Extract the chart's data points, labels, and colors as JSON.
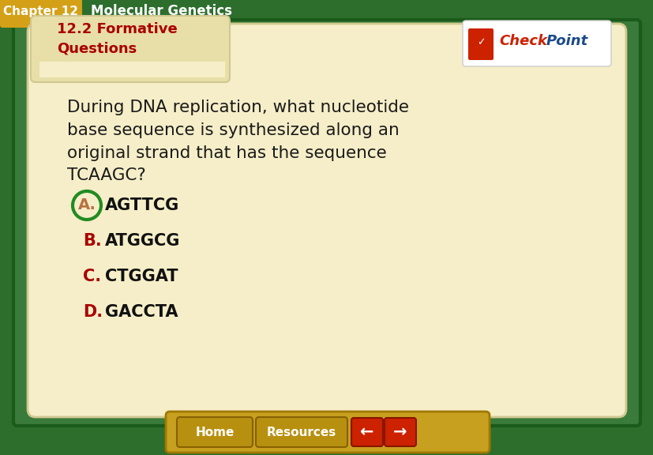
{
  "header_bg": "#2d6e2d",
  "header_chapter_bg": "#d4a017",
  "header_chapter_text": "Chapter 12",
  "header_title_text": "Molecular Genetics",
  "header_text_color": "#ffffff",
  "tab_bg": "#e8dfa8",
  "tab_title": "12.2 Formative\nQuestions",
  "tab_title_color": "#aa0000",
  "main_bg": "#f5eec8",
  "main_border": "#ccccaa",
  "question_text": "During DNA replication, what nucleotide\nbase sequence is synthesized along an\noriginal strand that has the sequence\nTCAAGC?",
  "question_color": "#1a1a1a",
  "options": [
    {
      "label": "A.",
      "text": "AGTTCG",
      "label_color": "#b87040",
      "circle_color": "#228B22",
      "text_color": "#111111",
      "circled": true
    },
    {
      "label": "B.",
      "text": "ATGGCG",
      "label_color": "#aa0000",
      "circle_color": "",
      "text_color": "#111111",
      "circled": false
    },
    {
      "label": "C.",
      "text": "CTGGAT",
      "label_color": "#aa0000",
      "circle_color": "",
      "text_color": "#111111",
      "circled": false
    },
    {
      "label": "D.",
      "text": "GACCTA",
      "label_color": "#aa0000",
      "circle_color": "",
      "text_color": "#111111",
      "circled": false
    }
  ],
  "footer_bg": "#c8a020",
  "outer_bg": "#2d6e2d",
  "inner_border": "#3a7a3a",
  "checkpoint_check_color": "#cc2200",
  "checkpoint_point_color": "#1a4a8a"
}
